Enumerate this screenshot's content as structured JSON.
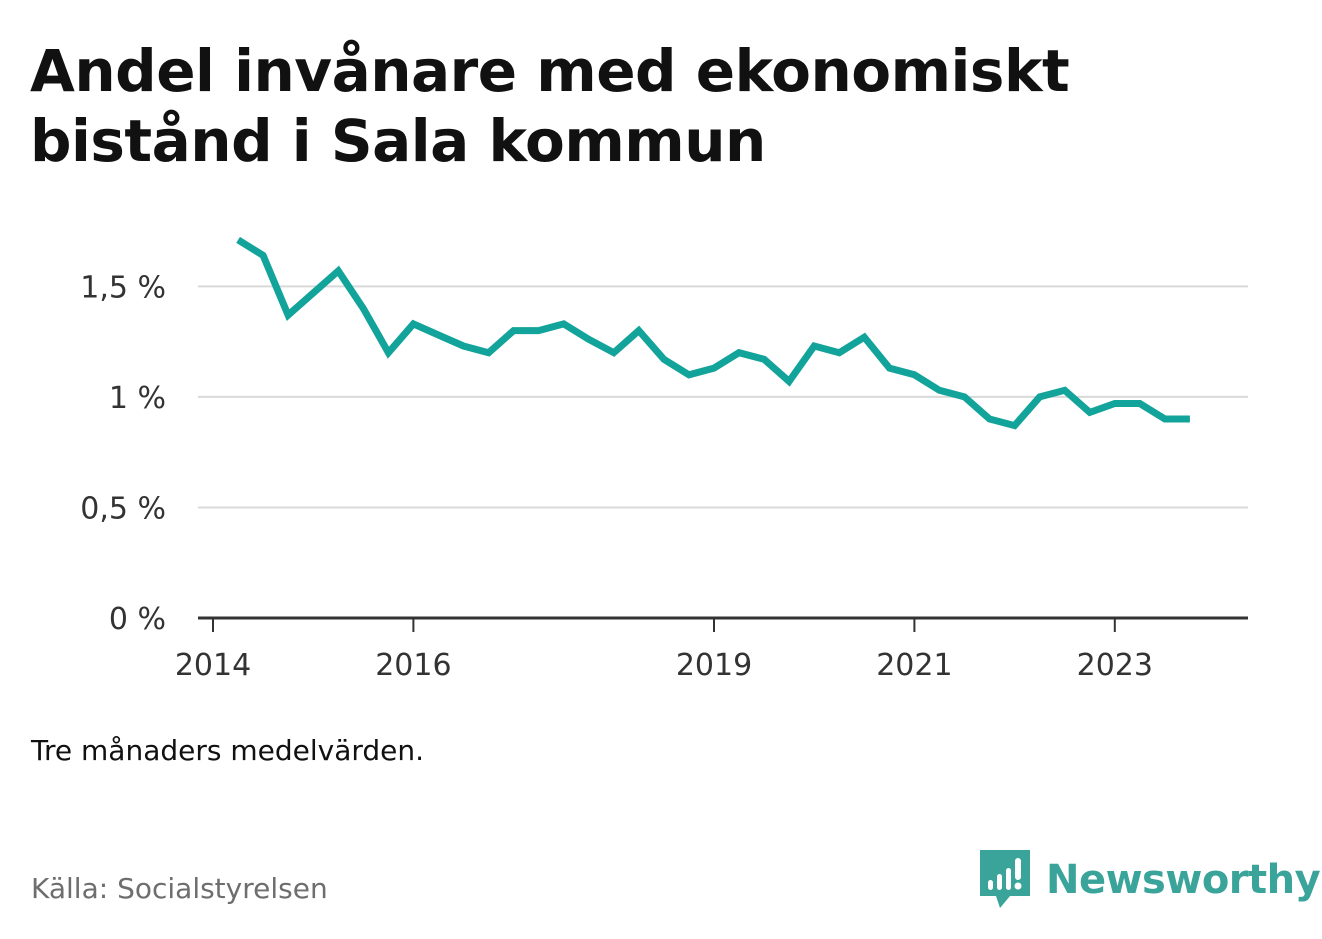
{
  "title": "Andel invånare med ekonomiskt bistånd i Sala kommun",
  "note": "Tre månaders medelvärden.",
  "source": "Källa: Socialstyrelsen",
  "brand": {
    "name": "Newsworthy",
    "icon": "newsworthy-logo-icon",
    "color": "#3aa39a"
  },
  "chart_data": {
    "type": "line",
    "title": "Andel invånare med ekonomiskt bistånd i Sala kommun",
    "xlabel": "",
    "ylabel": "",
    "ylim": [
      0,
      1.8
    ],
    "xlim": [
      "2014-01",
      "2024-03"
    ],
    "grid": true,
    "line_color": "#12a39a",
    "y_ticks": [
      {
        "value": 0,
        "label": "0 %"
      },
      {
        "value": 0.5,
        "label": "0,5 %"
      },
      {
        "value": 1,
        "label": "1 %"
      },
      {
        "value": 1.5,
        "label": "1,5 %"
      }
    ],
    "x_ticks": [
      {
        "value": "2014-01",
        "label": "2014"
      },
      {
        "value": "2016-01",
        "label": "2016"
      },
      {
        "value": "2019-01",
        "label": "2019"
      },
      {
        "value": "2021-01",
        "label": "2021"
      },
      {
        "value": "2023-01",
        "label": "2023"
      }
    ],
    "series": [
      {
        "x": [
          "2014-04",
          "2014-07",
          "2014-10",
          "2015-01",
          "2015-04",
          "2015-07",
          "2015-10",
          "2016-01",
          "2016-04",
          "2016-07",
          "2016-10",
          "2017-01",
          "2017-04",
          "2017-07",
          "2017-10",
          "2018-01",
          "2018-04",
          "2018-07",
          "2018-10",
          "2019-01",
          "2019-04",
          "2019-07",
          "2019-10",
          "2020-01",
          "2020-04",
          "2020-07",
          "2020-10",
          "2021-01",
          "2021-04",
          "2021-07",
          "2021-10",
          "2022-01",
          "2022-04",
          "2022-07",
          "2022-10",
          "2023-01",
          "2023-04",
          "2023-07",
          "2023-10"
        ],
        "values": [
          1.71,
          1.64,
          1.37,
          1.47,
          1.57,
          1.4,
          1.2,
          1.33,
          1.28,
          1.23,
          1.2,
          1.3,
          1.3,
          1.33,
          1.26,
          1.2,
          1.3,
          1.17,
          1.1,
          1.13,
          1.2,
          1.17,
          1.07,
          1.23,
          1.2,
          1.27,
          1.13,
          1.1,
          1.03,
          1.0,
          0.9,
          0.87,
          1.0,
          1.03,
          0.93,
          0.97,
          0.97,
          0.9,
          0.9
        ]
      }
    ]
  }
}
